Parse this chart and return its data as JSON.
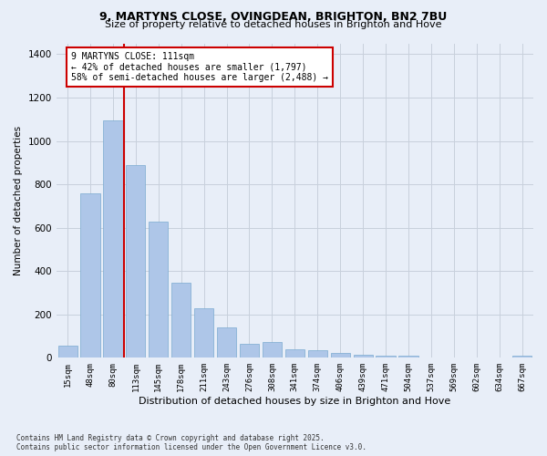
{
  "title1": "9, MARTYNS CLOSE, OVINGDEAN, BRIGHTON, BN2 7BU",
  "title2": "Size of property relative to detached houses in Brighton and Hove",
  "xlabel": "Distribution of detached houses by size in Brighton and Hove",
  "ylabel": "Number of detached properties",
  "categories": [
    "15sqm",
    "48sqm",
    "80sqm",
    "113sqm",
    "145sqm",
    "178sqm",
    "211sqm",
    "243sqm",
    "276sqm",
    "308sqm",
    "341sqm",
    "374sqm",
    "406sqm",
    "439sqm",
    "471sqm",
    "504sqm",
    "537sqm",
    "569sqm",
    "602sqm",
    "634sqm",
    "667sqm"
  ],
  "values": [
    55,
    760,
    1095,
    890,
    630,
    345,
    230,
    140,
    65,
    72,
    38,
    33,
    22,
    14,
    10,
    8,
    2,
    0,
    0,
    0,
    8
  ],
  "bar_color": "#aec6e8",
  "bar_edge_color": "#7aabd0",
  "vline_bar_index": 3,
  "vline_color": "#cc0000",
  "annotation_text": "9 MARTYNS CLOSE: 111sqm\n← 42% of detached houses are smaller (1,797)\n58% of semi-detached houses are larger (2,488) →",
  "annotation_box_edgecolor": "#cc0000",
  "annotation_box_facecolor": "#ffffff",
  "ylim": [
    0,
    1450
  ],
  "yticks": [
    0,
    200,
    400,
    600,
    800,
    1000,
    1200,
    1400
  ],
  "grid_color": "#c8d0dc",
  "background_color": "#e8eef8",
  "footer1": "Contains HM Land Registry data © Crown copyright and database right 2025.",
  "footer2": "Contains public sector information licensed under the Open Government Licence v3.0."
}
